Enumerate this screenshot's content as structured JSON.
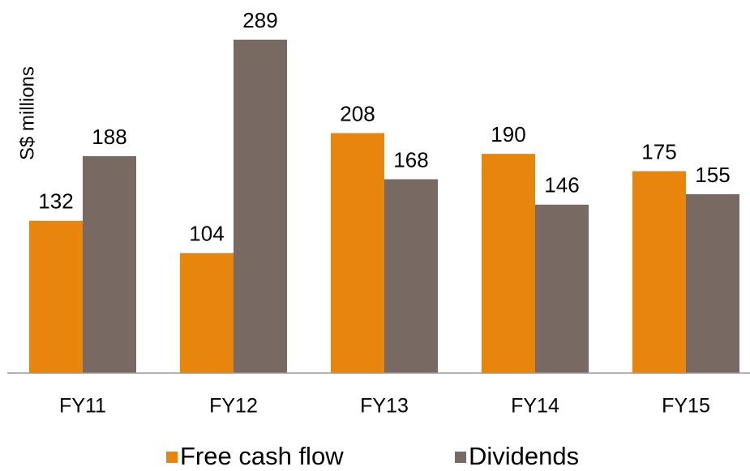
{
  "chart_data": {
    "type": "bar",
    "y_axis_label": "S$ millions",
    "categories": [
      "FY11",
      "FY12",
      "FY13",
      "FY14",
      "FY15"
    ],
    "series": [
      {
        "name": "Free cash flow",
        "color": "#e8850c",
        "values": [
          132,
          104,
          208,
          190,
          175
        ]
      },
      {
        "name": "Dividends",
        "color": "#786a62",
        "values": [
          188,
          289,
          168,
          146,
          155
        ]
      }
    ],
    "ylim": [
      0,
      300
    ],
    "legend": "bottom"
  }
}
